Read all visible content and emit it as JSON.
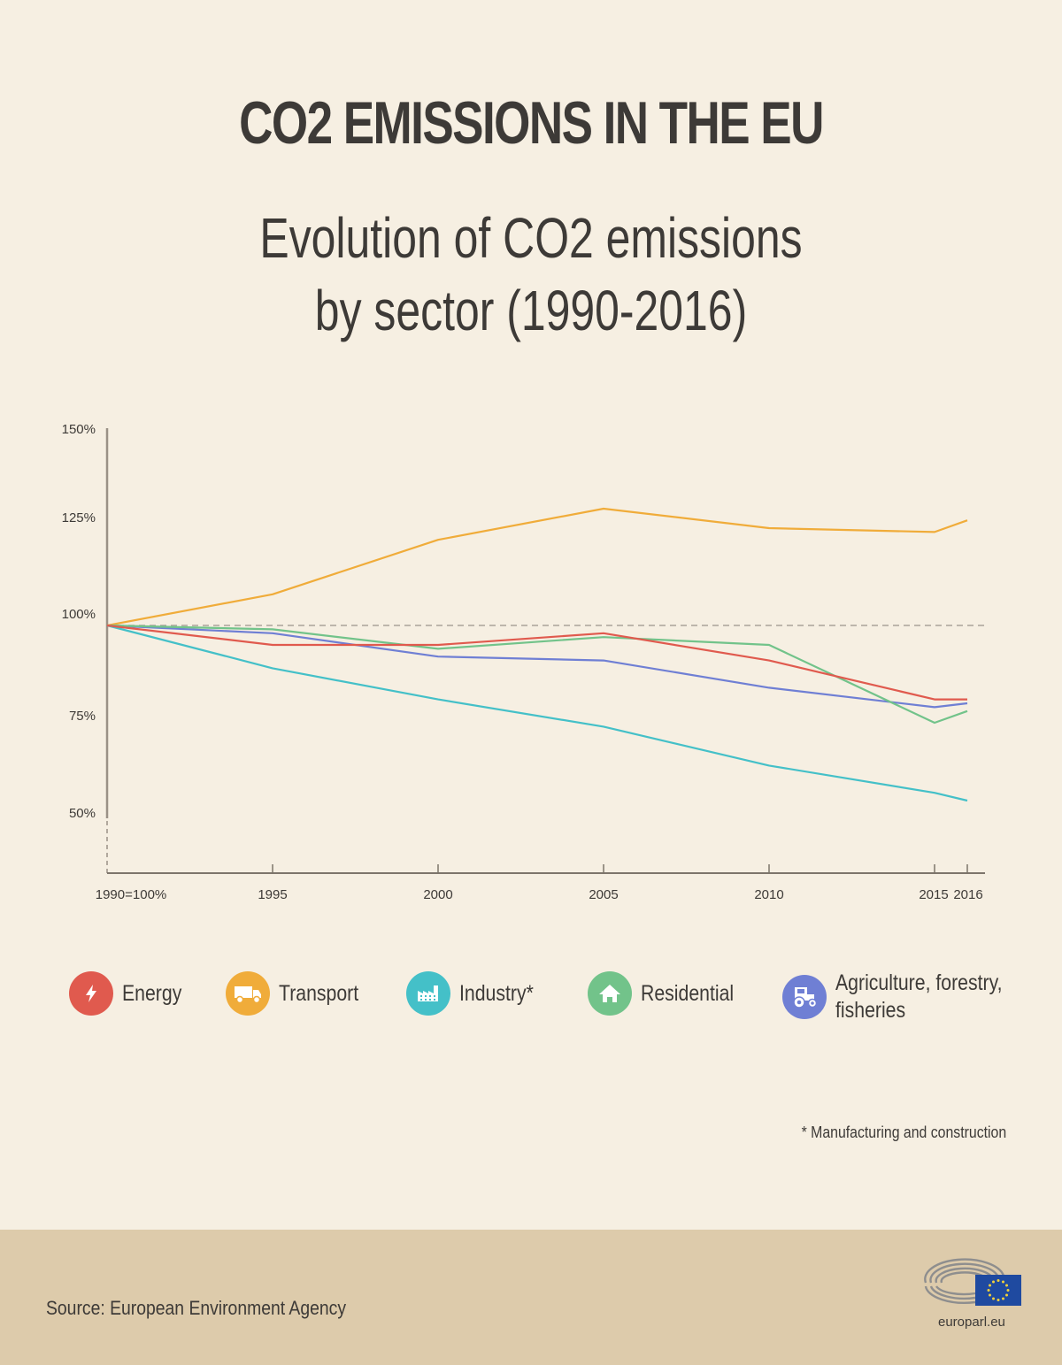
{
  "header": {
    "title": "CO2 EMISSIONS IN THE EU",
    "subtitle_line1": "Evolution of CO2 emissions",
    "subtitle_line2": "by sector (1990-2016)"
  },
  "chart_data": {
    "type": "line",
    "title": "Evolution of CO2 emissions by sector (1990-2016)",
    "xlabel": "",
    "ylabel": "",
    "x": [
      1990,
      1995,
      2000,
      2005,
      2010,
      2015,
      2016
    ],
    "x_tick_labels": [
      "1990=100%",
      "1995",
      "2000",
      "2005",
      "2010",
      "2015",
      "2016"
    ],
    "y_tick_labels": [
      "150%",
      "125%",
      "100%",
      "75%",
      "50%"
    ],
    "y_ticks": [
      150,
      125,
      100,
      75,
      50
    ],
    "ylim": [
      40,
      150
    ],
    "reference_line": 100,
    "grid": false,
    "legend_position": "bottom",
    "series": [
      {
        "name": "Energy",
        "color": "#e05a4e",
        "values": [
          100,
          95,
          95,
          98,
          91,
          81,
          81
        ]
      },
      {
        "name": "Transport",
        "color": "#f0ac3a",
        "values": [
          100,
          108,
          122,
          130,
          125,
          124,
          127
        ]
      },
      {
        "name": "Industry*",
        "color": "#44c0c8",
        "values": [
          100,
          89,
          81,
          74,
          64,
          57,
          55
        ]
      },
      {
        "name": "Residential",
        "color": "#72c38a",
        "values": [
          100,
          99,
          94,
          97,
          95,
          75,
          78
        ]
      },
      {
        "name": "Agriculture, forestry, fisheries",
        "color": "#6f7fd4",
        "values": [
          100,
          98,
          92,
          91,
          84,
          79,
          80
        ]
      }
    ]
  },
  "legend": [
    {
      "label": "Energy",
      "icon": "lightning-icon",
      "color": "#e05a4e"
    },
    {
      "label": "Transport",
      "icon": "truck-icon",
      "color": "#f0ac3a"
    },
    {
      "label": "Industry*",
      "icon": "factory-icon",
      "color": "#44c0c8"
    },
    {
      "label": "Residential",
      "icon": "house-icon",
      "color": "#72c38a"
    },
    {
      "label": "Agriculture, forestry,",
      "label2": "fisheries",
      "icon": "tractor-icon",
      "color": "#6f7fd4"
    }
  ],
  "footnote": "* Manufacturing and construction",
  "footer": {
    "source": "Source: European Environment Agency",
    "logo_text": "europarl.eu"
  }
}
